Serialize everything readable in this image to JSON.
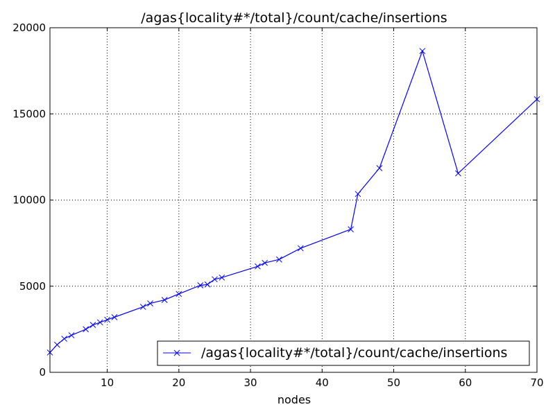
{
  "chart_data": {
    "type": "line",
    "title": "/agas{locality#*/total}/count/cache/insertions",
    "xlabel": "nodes",
    "ylabel": "",
    "xlim": [
      2,
      70
    ],
    "ylim": [
      0,
      20000
    ],
    "xticks": [
      10,
      20,
      30,
      40,
      50,
      60,
      70
    ],
    "yticks": [
      0,
      5000,
      10000,
      15000,
      20000
    ],
    "grid": true,
    "legend_position": "lower-right",
    "series": [
      {
        "name": "/agas{locality#*/total}/count/cache/insertions",
        "color": "#0000ff",
        "marker": "x",
        "x": [
          2,
          3,
          4,
          5,
          7,
          8,
          9,
          10,
          11,
          15,
          16,
          18,
          20,
          23,
          24,
          25,
          26,
          31,
          32,
          34,
          37,
          44,
          45,
          48,
          54,
          59,
          70
        ],
        "y": [
          1150,
          1600,
          1950,
          2150,
          2500,
          2750,
          2900,
          3050,
          3200,
          3800,
          4000,
          4200,
          4550,
          5050,
          5100,
          5400,
          5500,
          6150,
          6350,
          6550,
          7200,
          8300,
          10350,
          11850,
          18650,
          11550,
          15850
        ]
      }
    ]
  }
}
